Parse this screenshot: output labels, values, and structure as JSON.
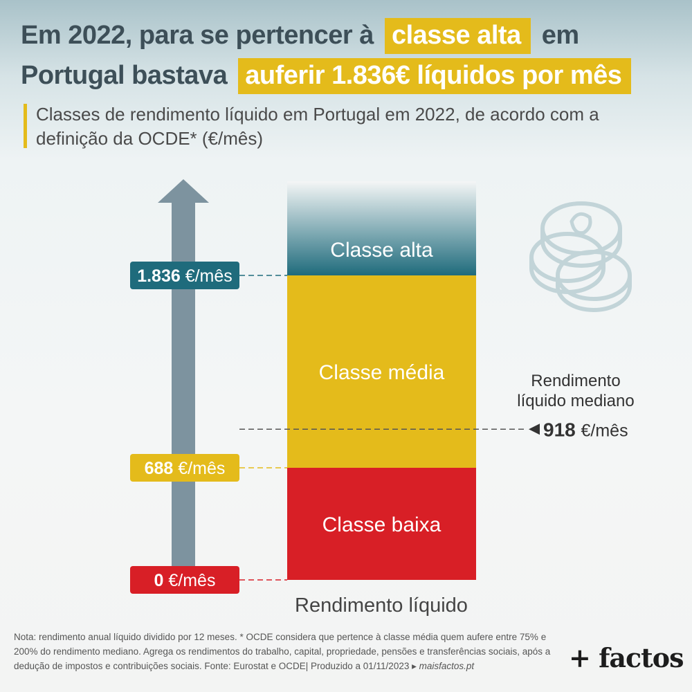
{
  "header": {
    "title_line1_pre": "Em 2022, para se pertencer à",
    "title_line1_highlight": "classe alta",
    "title_line1_post": "em",
    "title_line2_pre": "Portugal bastava",
    "title_line2_highlight": "auferir 1.836€ líquidos por mês",
    "subtitle": "Classes de rendimento líquido em Portugal em 2022, de acordo com a definição da OCDE* (€/mês)"
  },
  "chart_data": {
    "type": "bar",
    "orientation": "stacked-vertical-band",
    "xlabel": "Rendimento líquido",
    "unit": "€/mês",
    "classes": [
      {
        "name": "Classe baixa",
        "from": 0,
        "to": 688,
        "color": "#d81f26"
      },
      {
        "name": "Classe média",
        "from": 688,
        "to": 1836,
        "color": "#e4bb1b"
      },
      {
        "name": "Classe alta",
        "from": 1836,
        "to": null,
        "color": "#1f6b7c"
      }
    ],
    "thresholds": [
      {
        "value": 1836,
        "value_text": "1.836",
        "unit_text": "€/mês",
        "color": "#1f6b7c"
      },
      {
        "value": 688,
        "value_text": "688",
        "unit_text": "€/mês",
        "color": "#e4bb1b"
      },
      {
        "value": 0,
        "value_text": "0",
        "unit_text": "€/mês",
        "color": "#d81f26"
      }
    ],
    "median": {
      "label_line1": "Rendimento",
      "label_line2": "líquido mediano",
      "value": 918,
      "value_text": "918",
      "unit_text": "€/mês"
    }
  },
  "footer": {
    "note": "Nota: rendimento anual líquido dividido por 12 meses. * OCDE considera que pertence à classe média quem aufere entre 75% e 200% do rendimento mediano. Agrega os rendimentos do trabalho, capital, propriedade, pensões e transferências sociais, após a dedução de impostos e contribuições sociais. Fonte: Eurostat e OCDE| Produzido a 01/11/2023 ▸",
    "site": "maisfactos.pt",
    "brand": "+ factos"
  },
  "colors": {
    "accent_yellow": "#e4bb1b",
    "teal": "#1f6b7c",
    "red": "#d81f26",
    "arrow_gray": "#7d939f"
  }
}
